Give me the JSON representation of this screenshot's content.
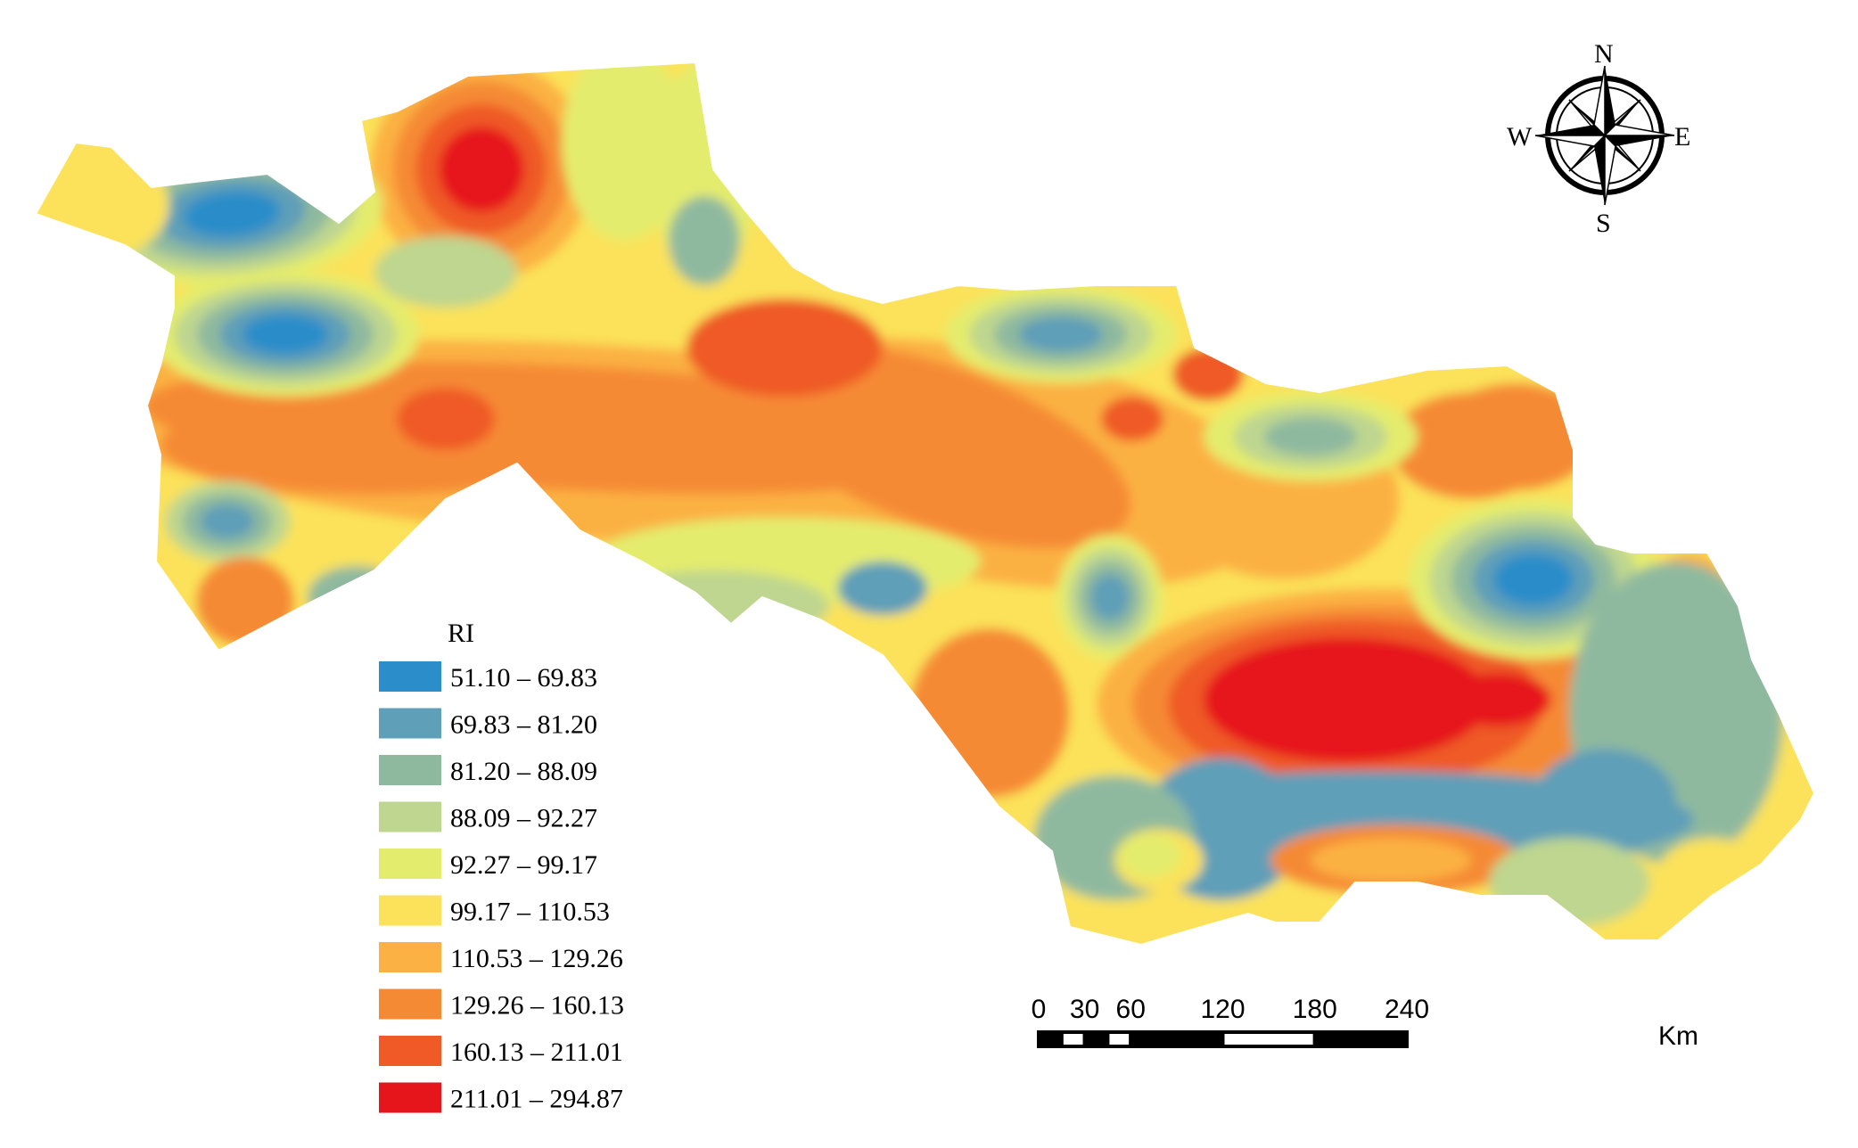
{
  "legend": {
    "title": "RI",
    "classes": [
      {
        "label": "51.10 – 69.83",
        "color": "#2b8dc9"
      },
      {
        "label": "69.83 – 81.20",
        "color": "#5f9fb8"
      },
      {
        "label": "81.20 – 88.09",
        "color": "#8fb99f"
      },
      {
        "label": "88.09 – 92.27",
        "color": "#bed68f"
      },
      {
        "label": "92.27 – 99.17",
        "color": "#e4ec6d"
      },
      {
        "label": "99.17 – 110.53",
        "color": "#fbe25a"
      },
      {
        "label": "110.53 – 129.26",
        "color": "#fbb143"
      },
      {
        "label": "129.26 – 160.13",
        "color": "#f58a35"
      },
      {
        "label": "160.13 – 211.01",
        "color": "#ef5a27"
      },
      {
        "label": "211.01 – 294.87",
        "color": "#e6141b"
      }
    ]
  },
  "scale_bar": {
    "ticks": [
      "0",
      "30",
      "60",
      "120",
      "180",
      "240"
    ],
    "unit": "Km"
  },
  "compass": {
    "n": "N",
    "s": "S",
    "e": "E",
    "w": "W"
  }
}
